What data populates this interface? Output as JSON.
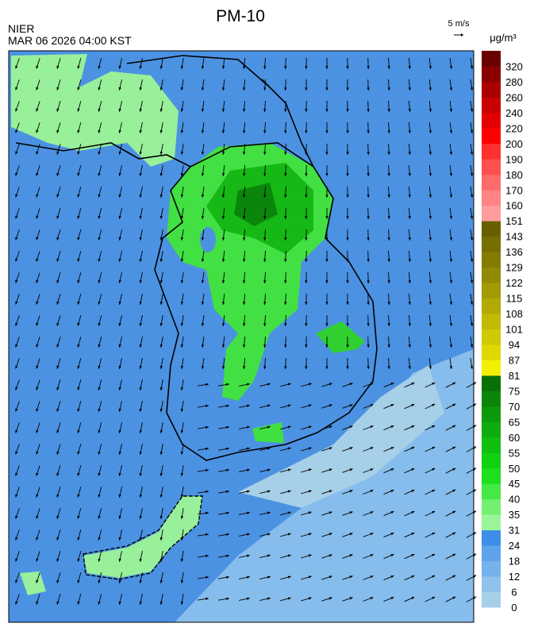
{
  "header": {
    "title": "PM-10",
    "source": "NIER",
    "time": "MAR 06 2026 04:00 KST",
    "wind_scale": "5 m/s"
  },
  "colorbar": {
    "unit": "μg/m³",
    "labels": [
      0,
      6,
      12,
      18,
      24,
      31,
      35,
      40,
      45,
      50,
      55,
      60,
      65,
      70,
      75,
      81,
      87,
      94,
      101,
      108,
      115,
      122,
      129,
      136,
      143,
      151,
      160,
      170,
      180,
      190,
      200,
      220,
      240,
      260,
      280,
      320
    ],
    "colors": [
      "#a6cfe8",
      "#90c2ec",
      "#76b2ec",
      "#5fa2ec",
      "#3d8ee8",
      "#9af59a",
      "#72f072",
      "#45e845",
      "#1edf1e",
      "#12d012",
      "#10bf10",
      "#0fac0f",
      "#0c9a0c",
      "#0a860a",
      "#077007",
      "#f2f000",
      "#e0d800",
      "#d0c800",
      "#c2ba00",
      "#b2aa00",
      "#a29a00",
      "#928a00",
      "#847c00",
      "#766e00",
      "#686000",
      "#ff9c9c",
      "#ff8484",
      "#ff6a6a",
      "#ff5050",
      "#ff3030",
      "#ff0000",
      "#e40000",
      "#c80000",
      "#aa0000",
      "#8a0000",
      "#6a0000"
    ]
  }
}
